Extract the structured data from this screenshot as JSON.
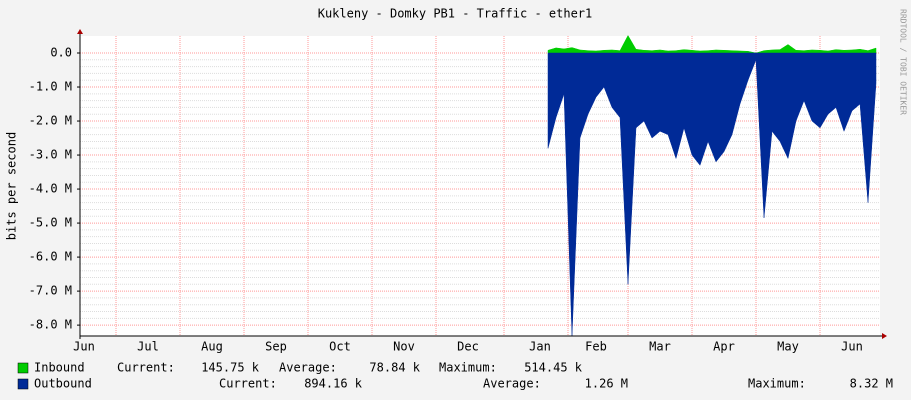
{
  "chart_data": {
    "type": "area",
    "title": "Kukleny - Domky PB1 - Traffic - ether1",
    "y_label": "bits per second",
    "watermark": "RRDTOOL / TOBI OETIKER",
    "grid": true,
    "categories": [
      "Jun",
      null,
      null,
      null,
      null,
      null,
      null,
      null,
      "Jul",
      null,
      null,
      null,
      null,
      null,
      null,
      null,
      "Aug",
      null,
      null,
      null,
      null,
      null,
      null,
      null,
      "Sep",
      null,
      null,
      null,
      null,
      null,
      null,
      null,
      "Oct",
      null,
      null,
      null,
      null,
      null,
      null,
      null,
      "Nov",
      null,
      null,
      null,
      null,
      null,
      null,
      null,
      "Dec",
      null,
      null,
      null,
      null,
      null,
      null,
      null,
      null,
      "Jan",
      null,
      null,
      null,
      null,
      null,
      null,
      "Feb",
      null,
      null,
      null,
      null,
      null,
      null,
      null,
      "Mar",
      null,
      null,
      null,
      null,
      null,
      null,
      null,
      "Apr",
      null,
      null,
      null,
      null,
      null,
      null,
      null,
      "May",
      null,
      null,
      null,
      null,
      null,
      null,
      null,
      "Jun",
      null,
      null,
      null
    ],
    "ylim": [
      -8320000,
      500000
    ],
    "yticks": [
      {
        "value": 0,
        "label": "0.0"
      },
      {
        "value": -1000000,
        "label": "-1.0 M"
      },
      {
        "value": -2000000,
        "label": "-2.0 M"
      },
      {
        "value": -3000000,
        "label": "-3.0 M"
      },
      {
        "value": -4000000,
        "label": "-4.0 M"
      },
      {
        "value": -5000000,
        "label": "-5.0 M"
      },
      {
        "value": -6000000,
        "label": "-6.0 M"
      },
      {
        "value": -7000000,
        "label": "-7.0 M"
      },
      {
        "value": -8000000,
        "label": "-8.0 M"
      }
    ],
    "series": [
      {
        "name": "Inbound",
        "color": "#00cc00",
        "stats": [
          {
            "label": "Current:",
            "value": "145.75 k"
          },
          {
            "label": "Average:",
            "value": "78.84 k"
          },
          {
            "label": "Maximum:",
            "value": "514.45 k"
          }
        ],
        "values": [
          null,
          null,
          null,
          null,
          null,
          null,
          null,
          null,
          null,
          null,
          null,
          null,
          null,
          null,
          null,
          null,
          null,
          null,
          null,
          null,
          null,
          null,
          null,
          null,
          null,
          null,
          null,
          null,
          null,
          null,
          null,
          null,
          null,
          null,
          null,
          null,
          null,
          null,
          null,
          null,
          null,
          null,
          null,
          null,
          null,
          null,
          null,
          null,
          null,
          null,
          null,
          null,
          null,
          null,
          null,
          null,
          null,
          null,
          80000,
          150000,
          120000,
          160000,
          90000,
          70000,
          60000,
          80000,
          90000,
          70000,
          514450,
          110000,
          80000,
          70000,
          90000,
          60000,
          70000,
          100000,
          80000,
          60000,
          70000,
          90000,
          80000,
          70000,
          60000,
          50000,
          0,
          70000,
          90000,
          100000,
          250000,
          80000,
          70000,
          90000,
          80000,
          60000,
          100000,
          80000,
          90000,
          110000,
          70000,
          145750
        ]
      },
      {
        "name": "Outbound",
        "color": "#002a97",
        "stats": [
          {
            "label": "Current:",
            "value": "894.16 k"
          },
          {
            "label": "Average:",
            "value": "1.26 M"
          },
          {
            "label": "Maximum:",
            "value": "8.32 M"
          }
        ],
        "values": [
          null,
          null,
          null,
          null,
          null,
          null,
          null,
          null,
          null,
          null,
          null,
          null,
          null,
          null,
          null,
          null,
          null,
          null,
          null,
          null,
          null,
          null,
          null,
          null,
          null,
          null,
          null,
          null,
          null,
          null,
          null,
          null,
          null,
          null,
          null,
          null,
          null,
          null,
          null,
          null,
          null,
          null,
          null,
          null,
          null,
          null,
          null,
          null,
          null,
          null,
          null,
          null,
          null,
          null,
          null,
          null,
          null,
          null,
          -2800000,
          -1900000,
          -1200000,
          -8320000,
          -2500000,
          -1800000,
          -1300000,
          -1000000,
          -1600000,
          -1900000,
          -6800000,
          -2200000,
          -2000000,
          -2500000,
          -2300000,
          -2400000,
          -3100000,
          -2200000,
          -3000000,
          -3300000,
          -2600000,
          -3200000,
          -2900000,
          -2400000,
          -1500000,
          -800000,
          -200000,
          -4850000,
          -2300000,
          -2600000,
          -3100000,
          -2000000,
          -1400000,
          -2000000,
          -2200000,
          -1800000,
          -1600000,
          -2300000,
          -1700000,
          -1500000,
          -4400000,
          -894160
        ]
      }
    ]
  }
}
